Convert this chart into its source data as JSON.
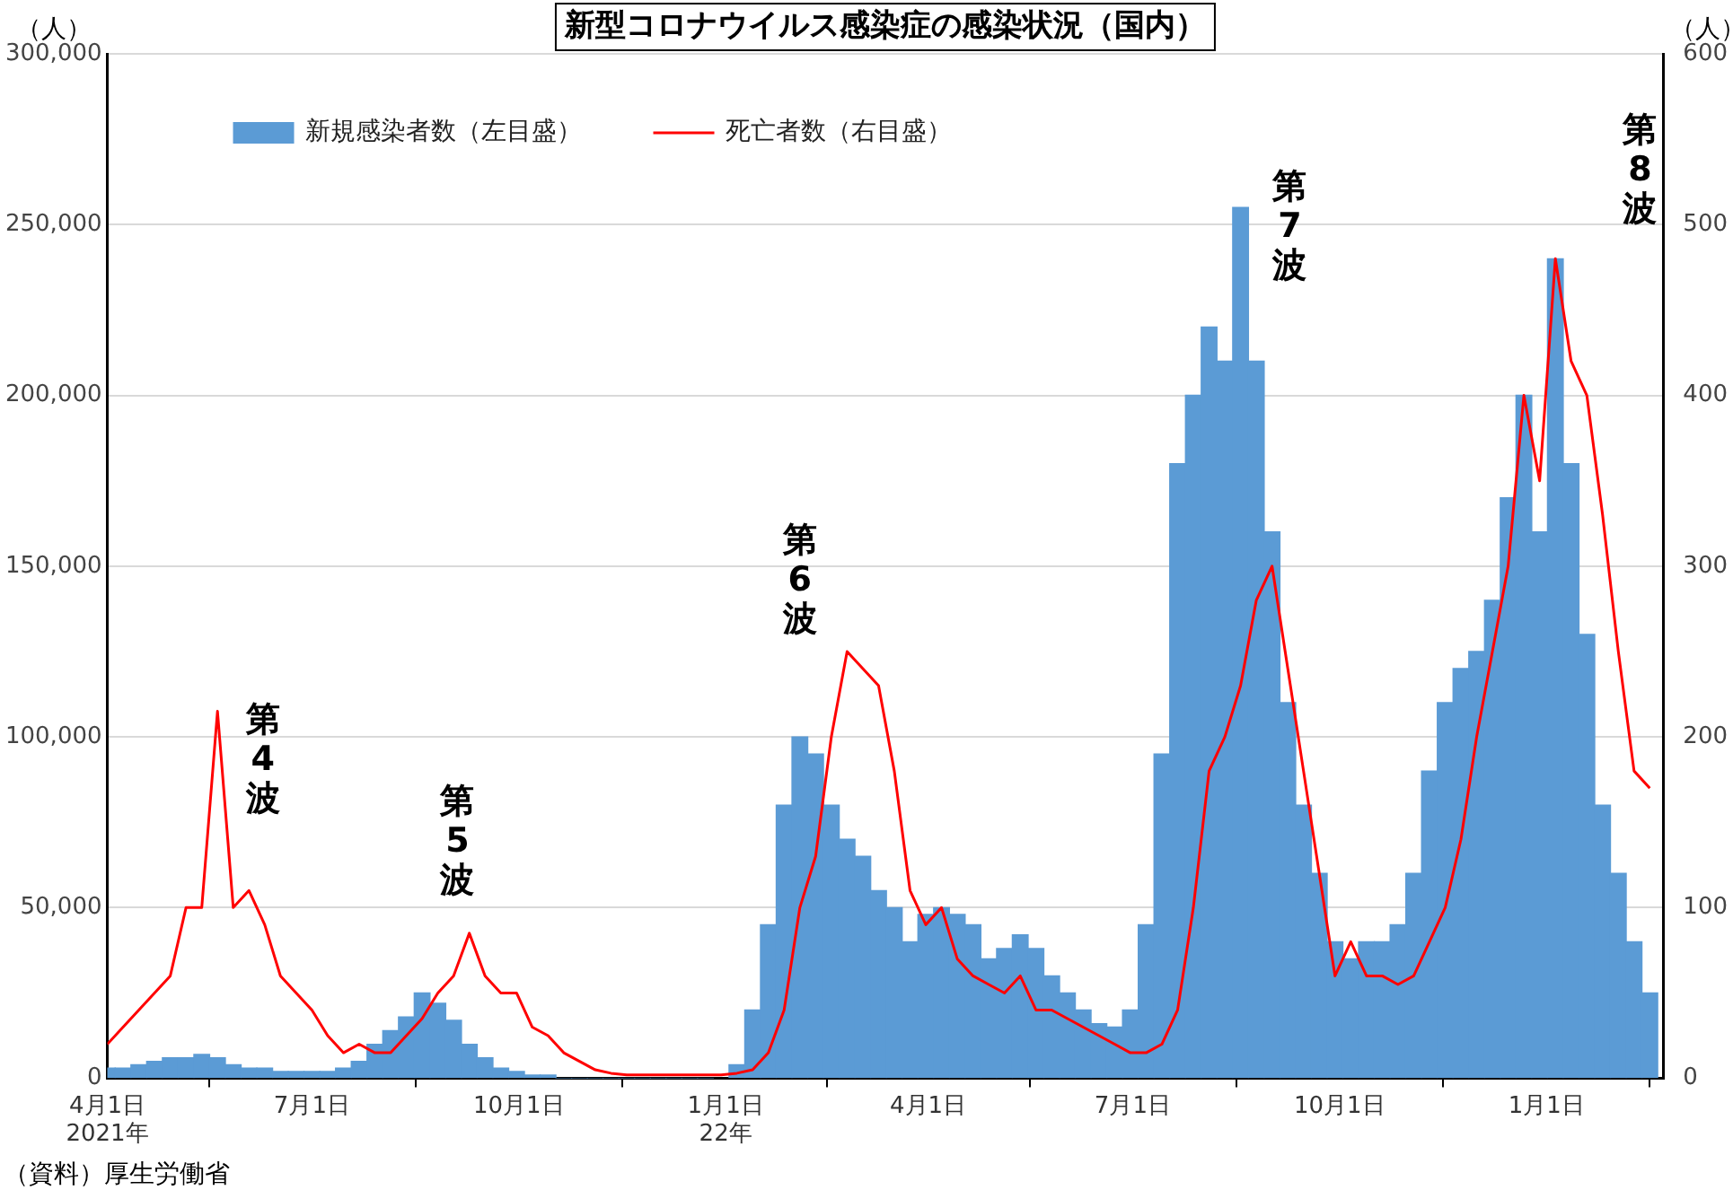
{
  "chart_data": {
    "type": "bar",
    "title": "新型コロナウイルス感染症の感染状況（国内）",
    "ylabel": "（人）",
    "y2label": "（人）",
    "x": [
      "2021-04-01",
      "2021-04-08",
      "2021-04-15",
      "2021-04-22",
      "2021-04-29",
      "2021-05-06",
      "2021-05-13",
      "2021-05-20",
      "2021-05-27",
      "2021-06-03",
      "2021-06-10",
      "2021-06-17",
      "2021-06-24",
      "2021-07-01",
      "2021-07-08",
      "2021-07-15",
      "2021-07-22",
      "2021-07-29",
      "2021-08-05",
      "2021-08-12",
      "2021-08-19",
      "2021-08-26",
      "2021-09-02",
      "2021-09-09",
      "2021-09-16",
      "2021-09-23",
      "2021-09-30",
      "2021-10-07",
      "2021-10-14",
      "2021-10-21",
      "2021-10-28",
      "2021-11-04",
      "2021-11-11",
      "2021-11-18",
      "2021-11-25",
      "2021-12-02",
      "2021-12-09",
      "2021-12-16",
      "2021-12-23",
      "2021-12-30",
      "2022-01-06",
      "2022-01-13",
      "2022-01-20",
      "2022-01-27",
      "2022-02-03",
      "2022-02-10",
      "2022-02-17",
      "2022-02-24",
      "2022-03-03",
      "2022-03-10",
      "2022-03-17",
      "2022-03-24",
      "2022-03-31",
      "2022-04-07",
      "2022-04-14",
      "2022-04-21",
      "2022-04-28",
      "2022-05-05",
      "2022-05-12",
      "2022-05-19",
      "2022-05-26",
      "2022-06-02",
      "2022-06-09",
      "2022-06-16",
      "2022-06-23",
      "2022-06-30",
      "2022-07-07",
      "2022-07-14",
      "2022-07-21",
      "2022-07-28",
      "2022-08-04",
      "2022-08-11",
      "2022-08-18",
      "2022-08-25",
      "2022-09-01",
      "2022-09-08",
      "2022-09-15",
      "2022-09-22",
      "2022-09-29",
      "2022-10-06",
      "2022-10-13",
      "2022-10-20",
      "2022-10-27",
      "2022-11-03",
      "2022-11-10",
      "2022-11-17",
      "2022-11-24",
      "2022-12-01",
      "2022-12-08",
      "2022-12-15",
      "2022-12-22",
      "2022-12-29",
      "2023-01-05",
      "2023-01-12",
      "2023-01-19",
      "2023-01-26",
      "2023-02-02",
      "2023-02-09",
      "2023-02-16"
    ],
    "series": [
      {
        "name": "新規感染者数（左目盛）",
        "color": "#5b9bd5",
        "values": [
          3000,
          3000,
          4000,
          5000,
          6000,
          6000,
          7000,
          6000,
          4000,
          3000,
          3000,
          2000,
          2000,
          2000,
          2000,
          3000,
          5000,
          10000,
          14000,
          18000,
          25000,
          22000,
          17000,
          10000,
          6000,
          3000,
          2000,
          1000,
          1000,
          0,
          0,
          0,
          0,
          0,
          0,
          0,
          0,
          0,
          0,
          null,
          4000,
          20000,
          45000,
          80000,
          100000,
          95000,
          80000,
          70000,
          65000,
          55000,
          50000,
          40000,
          48000,
          50000,
          48000,
          45000,
          35000,
          38000,
          42000,
          38000,
          30000,
          25000,
          20000,
          16000,
          15000,
          20000,
          45000,
          95000,
          180000,
          200000,
          220000,
          210000,
          255000,
          210000,
          160000,
          110000,
          80000,
          60000,
          40000,
          35000,
          40000,
          40000,
          45000,
          60000,
          90000,
          110000,
          120000,
          125000,
          140000,
          170000,
          200000,
          160000,
          240000,
          180000,
          130000,
          80000,
          60000,
          40000,
          25000
        ]
      },
      {
        "name": "死亡者数（右目盛）",
        "type": "line",
        "axis": "y2",
        "color": "#ff0000",
        "values": [
          20,
          30,
          40,
          50,
          60,
          100,
          100,
          215,
          100,
          110,
          90,
          60,
          50,
          40,
          25,
          15,
          20,
          15,
          15,
          25,
          35,
          50,
          60,
          85,
          60,
          50,
          50,
          30,
          25,
          15,
          10,
          5,
          3,
          2,
          2,
          2,
          2,
          2,
          2,
          2,
          3,
          5,
          15,
          40,
          100,
          130,
          200,
          250,
          240,
          230,
          180,
          110,
          90,
          100,
          70,
          60,
          55,
          50,
          60,
          40,
          40,
          35,
          30,
          25,
          20,
          15,
          15,
          20,
          40,
          100,
          180,
          200,
          230,
          280,
          300,
          240,
          180,
          120,
          60,
          80,
          60,
          60,
          55,
          60,
          80,
          100,
          140,
          200,
          250,
          300,
          400,
          350,
          480,
          420,
          400,
          330,
          250,
          180,
          170
        ]
      }
    ],
    "xlim": [
      "2021-04-01",
      "2023-02-22"
    ],
    "xticks": [
      {
        "value": "2021-04-01",
        "label": "4月1日\n2021年"
      },
      {
        "value": "2021-07-01",
        "label": "7月1日"
      },
      {
        "value": "2021-10-01",
        "label": "10月1日"
      },
      {
        "value": "2022-01-01",
        "label": "1月1日\n22年"
      },
      {
        "value": "2022-04-01",
        "label": "4月1日"
      },
      {
        "value": "2022-07-01",
        "label": "7月1日"
      },
      {
        "value": "2022-10-01",
        "label": "10月1日"
      },
      {
        "value": "2023-01-01",
        "label": "1月1日"
      }
    ],
    "ylim": [
      0,
      300000
    ],
    "yticks": [
      {
        "value": 0,
        "label": "0"
      },
      {
        "value": 50000,
        "label": "50,000"
      },
      {
        "value": 100000,
        "label": "100,000"
      },
      {
        "value": 150000,
        "label": "150,000"
      },
      {
        "value": 200000,
        "label": "200,000"
      },
      {
        "value": 250000,
        "label": "250,000"
      },
      {
        "value": 300000,
        "label": "300,000"
      }
    ],
    "y2lim": [
      0,
      600
    ],
    "y2ticks": [
      0,
      100,
      200,
      300,
      400,
      500,
      600
    ],
    "grid": "y",
    "legend": "top left",
    "annotations": [
      "第4波",
      "第5波",
      "第6波",
      "第7波",
      "第8波",
      "（資料）厚生労働省"
    ]
  }
}
